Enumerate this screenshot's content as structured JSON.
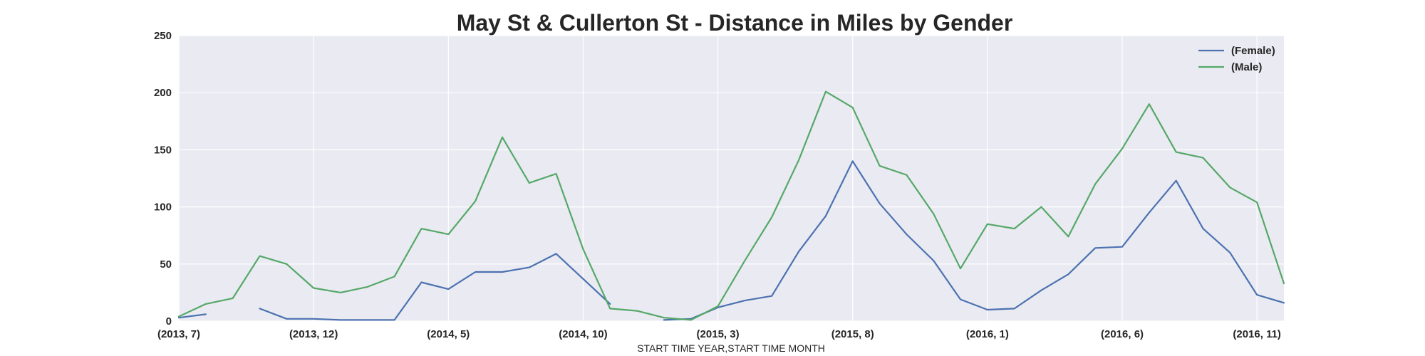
{
  "chart_data": {
    "type": "line",
    "title": "May St & Cullerton St - Distance in Miles by Gender",
    "xlabel": "START TIME YEAR,START TIME MONTH",
    "ylabel": "",
    "ylim": [
      0,
      250
    ],
    "yticks": [
      0,
      50,
      100,
      150,
      200,
      250
    ],
    "xtick_labels": [
      "(2013, 7)",
      "(2013, 12)",
      "(2014, 5)",
      "(2014, 10)",
      "(2015, 3)",
      "(2015, 8)",
      "(2016, 1)",
      "(2016, 6)",
      "(2016, 11)"
    ],
    "x": [
      "(2013, 7)",
      "(2013, 8)",
      "(2013, 9)",
      "(2013, 10)",
      "(2013, 11)",
      "(2013, 12)",
      "(2014, 1)",
      "(2014, 2)",
      "(2014, 3)",
      "(2014, 4)",
      "(2014, 5)",
      "(2014, 6)",
      "(2014, 7)",
      "(2014, 8)",
      "(2014, 9)",
      "(2014, 10)",
      "(2014, 11)",
      "(2014, 12)",
      "(2015, 1)",
      "(2015, 2)",
      "(2015, 3)",
      "(2015, 4)",
      "(2015, 5)",
      "(2015, 6)",
      "(2015, 7)",
      "(2015, 8)",
      "(2015, 9)",
      "(2015, 10)",
      "(2015, 11)",
      "(2015, 12)",
      "(2016, 1)",
      "(2016, 2)",
      "(2016, 3)",
      "(2016, 4)",
      "(2016, 5)",
      "(2016, 6)",
      "(2016, 7)",
      "(2016, 8)",
      "(2016, 9)",
      "(2016, 10)",
      "(2016, 11)",
      "(2016, 12)"
    ],
    "series": [
      {
        "name": "(Female)",
        "color": "#4c72b0",
        "values": [
          3,
          6,
          null,
          11,
          2,
          2,
          1,
          1,
          1,
          34,
          28,
          43,
          43,
          47,
          59,
          37,
          15,
          null,
          1,
          2,
          12,
          18,
          22,
          61,
          92,
          140,
          103,
          76,
          53,
          19,
          10,
          11,
          27,
          41,
          64,
          65,
          95,
          123,
          81,
          60,
          23,
          16
        ]
      },
      {
        "name": "(Male)",
        "color": "#55a868",
        "values": [
          4,
          15,
          20,
          57,
          50,
          29,
          25,
          30,
          39,
          81,
          76,
          105,
          161,
          121,
          129,
          63,
          11,
          9,
          3,
          1,
          13,
          53,
          91,
          141,
          201,
          187,
          136,
          128,
          94,
          46,
          85,
          81,
          100,
          74,
          120,
          151,
          190,
          148,
          143,
          117,
          104,
          33
        ]
      }
    ],
    "grid": true,
    "legend_position": "top-right",
    "background": "#eaeaf2"
  }
}
